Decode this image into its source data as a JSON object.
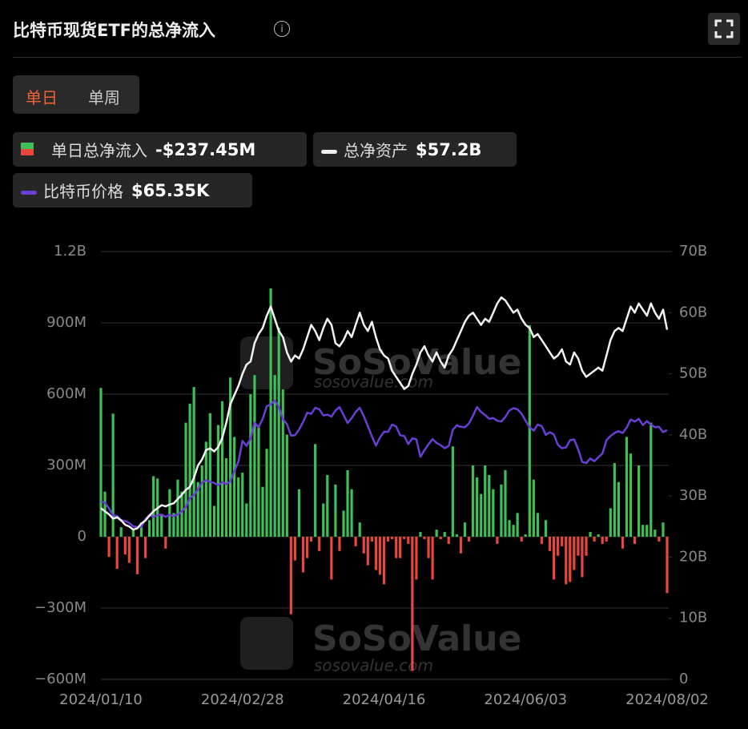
{
  "header": {
    "title": "比特币现货ETF的总净流入",
    "tabs": [
      "单日",
      "单周"
    ]
  },
  "chart_data": {
    "type": "bar",
    "categories": [
      "2024/01/10",
      null,
      null,
      null,
      null,
      null,
      null,
      null,
      null,
      null,
      null,
      null,
      null,
      null,
      null,
      null,
      null,
      null,
      null,
      null,
      null,
      null,
      null,
      null,
      null,
      null,
      null,
      null,
      null,
      null,
      null,
      null,
      null,
      null,
      null,
      "2024/02/28",
      null,
      null,
      null,
      null,
      null,
      null,
      null,
      null,
      null,
      null,
      null,
      null,
      null,
      null,
      null,
      null,
      null,
      null,
      null,
      null,
      null,
      null,
      null,
      null,
      null,
      null,
      null,
      null,
      null,
      null,
      null,
      null,
      null,
      null,
      "2024/04/16",
      null,
      null,
      null,
      null,
      null,
      null,
      null,
      null,
      null,
      null,
      null,
      null,
      null,
      null,
      null,
      null,
      null,
      null,
      null,
      null,
      null,
      null,
      null,
      null,
      null,
      null,
      null,
      null,
      null,
      null,
      null,
      null,
      null,
      null,
      "2024/06/03",
      null,
      null,
      null,
      null,
      null,
      null,
      null,
      null,
      null,
      null,
      null,
      null,
      null,
      null,
      null,
      null,
      null,
      null,
      null,
      null,
      null,
      null,
      null,
      null,
      null,
      null,
      null,
      null,
      null,
      null,
      null,
      null,
      null,
      null,
      "2024/08/02"
    ],
    "series": [
      {
        "name": "单日总净流入",
        "type": "bar",
        "colors": {
          "positive": "#3fbf55",
          "negative": "#e8473d"
        },
        "current": "-$237.45M",
        "values": [
          626,
          190,
          -85,
          518,
          -135,
          40,
          -75,
          -110,
          30,
          -158,
          60,
          -90,
          70,
          255,
          245,
          90,
          -50,
          200,
          100,
          240,
          190,
          480,
          560,
          630,
          230,
          300,
          400,
          520,
          130,
          470,
          570,
          330,
          670,
          420,
          250,
          270,
          140,
          600,
          680,
          460,
          210,
          370,
          1045,
          680,
          880,
          620,
          430,
          -326,
          -100,
          200,
          -150,
          -90,
          -20,
          390,
          -60,
          140,
          260,
          -180,
          220,
          -60,
          110,
          280,
          200,
          -40,
          60,
          -70,
          -120,
          -20,
          -140,
          -160,
          -200,
          -20,
          -10,
          -90,
          -90,
          -10,
          -30,
          -564,
          -180,
          20,
          -10,
          -90,
          -180,
          30,
          -10,
          20,
          -30,
          380,
          10,
          -70,
          60,
          -20,
          300,
          250,
          180,
          300,
          260,
          200,
          -30,
          220,
          280,
          70,
          50,
          100,
          -20,
          10,
          890,
          240,
          100,
          -30,
          70,
          -60,
          -180,
          -80,
          -40,
          -200,
          -190,
          -140,
          -80,
          -170,
          -80,
          20,
          -20,
          10,
          -30,
          -20,
          120,
          310,
          230,
          -50,
          420,
          350,
          -30,
          300,
          50,
          50,
          480,
          30,
          -20,
          60,
          -237.45
        ]
      },
      {
        "name": "总净资产",
        "type": "line",
        "axis": "y2",
        "color": "#f2f2f2",
        "current": "$57.2B",
        "values": [
          28.0,
          27.5,
          27.0,
          26.3,
          26.5,
          26.0,
          25.3,
          25.0,
          24.5,
          24.7,
          25.5,
          26.0,
          26.8,
          27.5,
          28.0,
          28.5,
          28.3,
          28.6,
          28.8,
          29.5,
          30.2,
          31.0,
          31.5,
          33.0,
          35.0,
          36.0,
          37.5,
          37.8,
          37.3,
          38.0,
          39.5,
          42.0,
          45.0,
          46.5,
          48.0,
          50.0,
          51.5,
          52.0,
          55.0,
          56.5,
          57.5,
          59.5,
          61.0,
          59.0,
          57.0,
          56.0,
          53.5,
          52.0,
          53.0,
          52.5,
          54.0,
          56.0,
          58.0,
          57.0,
          55.5,
          57.5,
          59.0,
          58.0,
          55.0,
          54.5,
          55.5,
          57.0,
          56.0,
          58.0,
          60.0,
          58.0,
          57.0,
          58.5,
          56.0,
          54.0,
          53.0,
          52.5,
          50.5,
          49.5,
          48.5,
          47.5,
          48.0,
          50.0,
          51.5,
          53.5,
          54.5,
          53.0,
          52.0,
          53.5,
          52.0,
          51.0,
          53.0,
          54.0,
          55.5,
          57.0,
          58.5,
          59.5,
          60.0,
          59.0,
          58.0,
          59.0,
          58.5,
          60.0,
          61.5,
          62.5,
          62.0,
          61.0,
          60.0,
          60.5,
          59.0,
          58.0,
          57.5,
          56.0,
          56.5,
          55.5,
          54.5,
          53.5,
          52.5,
          53.0,
          54.0,
          52.0,
          51.5,
          53.5,
          52.5,
          50.5,
          49.5,
          50.0,
          50.5,
          51.0,
          50.5,
          53.0,
          55.5,
          57.0,
          57.5,
          57.0,
          59.0,
          61.0,
          60.0,
          61.5,
          60.5,
          59.5,
          61.5,
          60.0,
          59.0,
          60.5,
          57.2
        ]
      },
      {
        "name": "比特币价格",
        "type": "line",
        "color": "#6a3fd6",
        "current": "$65.35K",
        "values": [
          46.6,
          46.3,
          44.8,
          43.0,
          42.8,
          41.7,
          41.5,
          41.0,
          40.1,
          39.9,
          40.0,
          42.0,
          43.1,
          42.6,
          43.0,
          43.2,
          42.6,
          43.1,
          42.8,
          43.2,
          44.0,
          45.2,
          47.5,
          48.3,
          49.8,
          51.6,
          52.2,
          51.8,
          51.5,
          50.9,
          51.7,
          51.2,
          51.9,
          54.5,
          57.1,
          62.5,
          61.2,
          63.1,
          67.3,
          66.1,
          68.3,
          71.6,
          72.1,
          73.1,
          71.4,
          68.2,
          66.9,
          63.9,
          64.0,
          65.5,
          67.5,
          69.9,
          69.6,
          71.2,
          70.8,
          69.2,
          69.4,
          68.9,
          70.5,
          71.4,
          69.3,
          67.2,
          68.5,
          70.1,
          71.2,
          69.0,
          66.4,
          63.7,
          61.3,
          63.4,
          64.9,
          64.9,
          66.8,
          66.3,
          64.0,
          63.8,
          61.7,
          63.2,
          62.9,
          58.3,
          60.1,
          61.6,
          63.0,
          62.0,
          61.4,
          60.6,
          61.2,
          65.4,
          66.6,
          66.2,
          66.1,
          67.1,
          69.1,
          71.4,
          70.1,
          69.3,
          68.3,
          68.5,
          67.8,
          67.6,
          68.8,
          70.5,
          71.1,
          70.8,
          69.7,
          67.8,
          66.1,
          65.2,
          66.8,
          66.4,
          64.1,
          64.8,
          64.2,
          61.5,
          60.6,
          60.8,
          62.7,
          62.9,
          60.3,
          57.0,
          56.7,
          57.9,
          57.2,
          58.2,
          59.2,
          62.7,
          63.8,
          64.6,
          65.1,
          64.6,
          66.0,
          68.1,
          67.6,
          68.3,
          66.7,
          67.7,
          66.8,
          66.1,
          66.2,
          64.8,
          65.35
        ]
      }
    ],
    "ylim": [
      -600,
      1200
    ],
    "yticks": [
      {
        "value": -600,
        "label": "−600M"
      },
      {
        "value": -300,
        "label": "−300M"
      },
      0,
      {
        "value": 300,
        "label": "300M"
      },
      {
        "value": 600,
        "label": "600M"
      },
      {
        "value": 900,
        "label": "900M"
      },
      {
        "value": 1200,
        "label": "1.2B"
      }
    ],
    "y2lim": [
      0,
      70
    ],
    "y2ticks": [
      0,
      {
        "value": 10,
        "label": "10B"
      },
      {
        "value": 20,
        "label": "20B"
      },
      {
        "value": 30,
        "label": "30B"
      },
      {
        "value": 40,
        "label": "40B"
      },
      {
        "value": 50,
        "label": "50B"
      },
      {
        "value": 60,
        "label": "60B"
      },
      {
        "value": 70,
        "label": "70B"
      }
    ],
    "grid": true,
    "watermark": [
      "SoSoValue",
      "sosovalue.com"
    ]
  }
}
